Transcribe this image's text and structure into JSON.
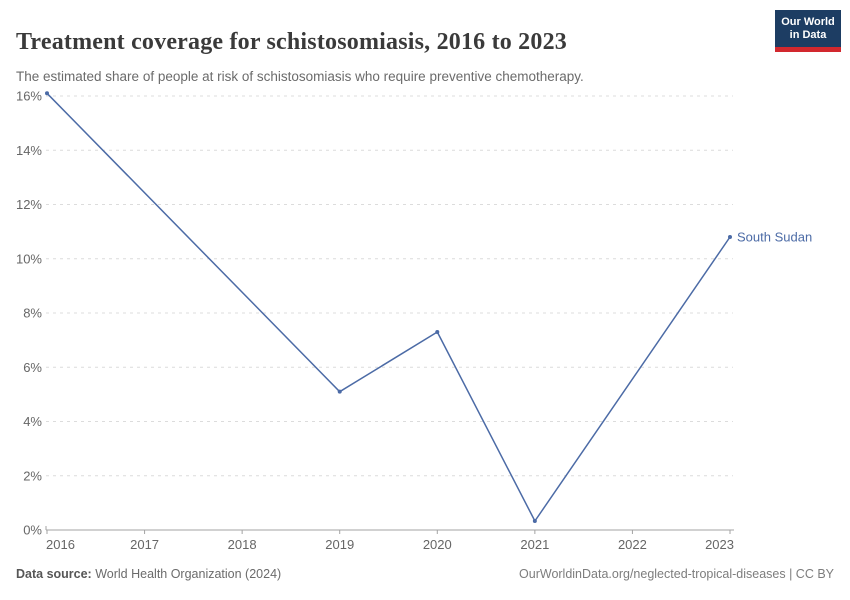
{
  "header": {
    "title": "Treatment coverage for schistosomiasis, 2016 to 2023",
    "subtitle": "The estimated share of people at risk of schistosomiasis who require preventive chemotherapy.",
    "logo": {
      "line1": "Our World",
      "line2": "in Data"
    }
  },
  "chart_data": {
    "type": "line",
    "title": "Treatment coverage for schistosomiasis, 2016 to 2023",
    "subtitle": "The estimated share of people at risk of schistosomiasis who require preventive chemotherapy.",
    "xlabel": "",
    "ylabel": "",
    "xlim": [
      2016,
      2023
    ],
    "ylim": [
      0,
      16
    ],
    "x_ticks": [
      2016,
      2017,
      2018,
      2019,
      2020,
      2021,
      2022,
      2023
    ],
    "y_ticks": [
      0,
      2,
      4,
      6,
      8,
      10,
      12,
      14,
      16
    ],
    "y_tick_suffix": "%",
    "grid": "horizontal-dashed",
    "legend_position": "entity-label-at-line-end",
    "series": [
      {
        "name": "South Sudan",
        "color": "#4c6ba6",
        "points": [
          {
            "x": 2016,
            "y": 16.1
          },
          {
            "x": 2019,
            "y": 5.1
          },
          {
            "x": 2020,
            "y": 7.3
          },
          {
            "x": 2021,
            "y": 0.33
          },
          {
            "x": 2023,
            "y": 10.8
          }
        ]
      }
    ]
  },
  "footer": {
    "source_label": "Data source:",
    "source_value": "World Health Organization (2024)",
    "license": "OurWorldinData.org/neglected-tropical-diseases | CC BY"
  },
  "colors": {
    "accent_line": "#4c6ba6",
    "title_text": "#3a3a3a",
    "subtitle_text": "#6b6b6b",
    "axis_text": "#666666",
    "gridline": "#dcdcdc",
    "axis_line": "#a3a3a3",
    "logo_navy": "#1d3d63",
    "logo_red": "#d2282e"
  }
}
